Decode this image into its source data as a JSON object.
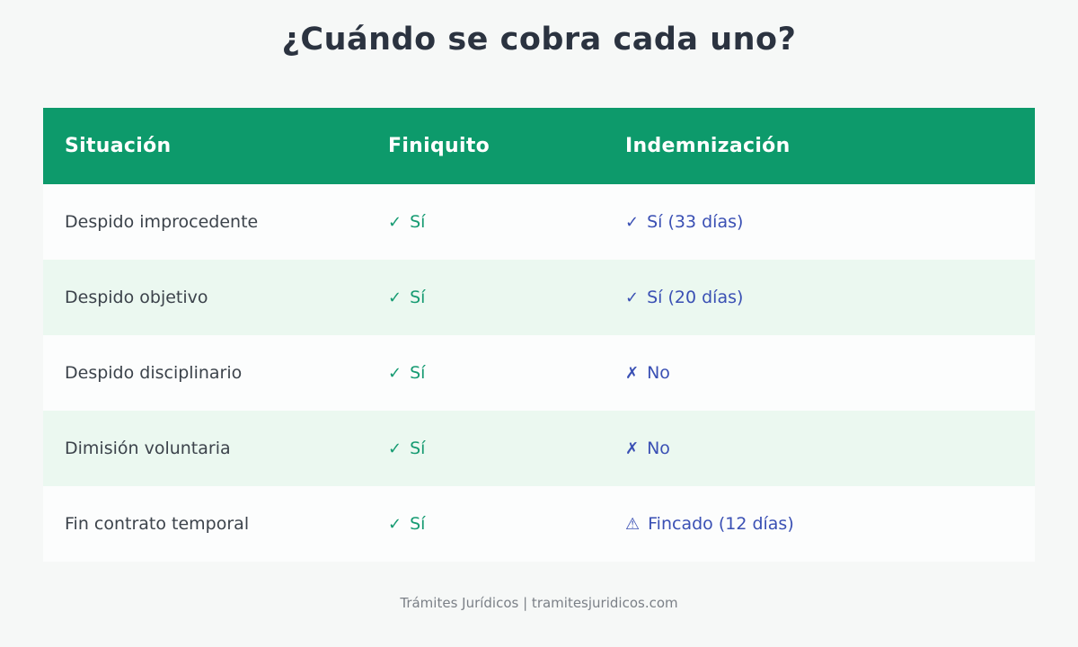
{
  "title": "¿Cuándo se cobra cada uno?",
  "footer": "Trámites Jurídicos | tramitesjuridicos.com",
  "colors": {
    "page_bg": "#f6f8f7",
    "header_bg": "#0d9a6b",
    "header_text": "#ffffff",
    "row_bg": "#fcfdfd",
    "row_alt_bg": "#ebf8f0",
    "title_text": "#2b3340",
    "body_text": "#3c434b",
    "yes_green": "#169b72",
    "info_blue": "#3a50b4",
    "footer_text": "#7b8087"
  },
  "table": {
    "headers": [
      "Situación",
      "Finiquito",
      "Indemnización"
    ],
    "rows": [
      {
        "situacion": "Despido improcedente",
        "finiquito": {
          "glyph": "✓",
          "text": "Sí"
        },
        "indemnizacion": {
          "glyph": "✓",
          "text": "Sí (33 días)"
        }
      },
      {
        "situacion": "Despido objetivo",
        "finiquito": {
          "glyph": "✓",
          "text": "Sí"
        },
        "indemnizacion": {
          "glyph": "✓",
          "text": "Sí (20 días)"
        }
      },
      {
        "situacion": "Despido disciplinario",
        "finiquito": {
          "glyph": "✓",
          "text": "Sí"
        },
        "indemnizacion": {
          "glyph": "✗",
          "text": "No"
        }
      },
      {
        "situacion": "Dimisión voluntaria",
        "finiquito": {
          "glyph": "✓",
          "text": "Sí"
        },
        "indemnizacion": {
          "glyph": "✗",
          "text": "No"
        }
      },
      {
        "situacion": "Fin contrato temporal",
        "finiquito": {
          "glyph": "✓",
          "text": "Sí"
        },
        "indemnizacion": {
          "glyph": "⚠",
          "text": "Fincado (12 días)"
        }
      }
    ]
  },
  "chart_data": {
    "type": "table",
    "title": "¿Cuándo se cobra cada uno?",
    "columns": [
      "Situación",
      "Finiquito",
      "Indemnización"
    ],
    "rows": [
      [
        "Despido improcedente",
        "✓ Sí",
        "✓ Sí (33 días)"
      ],
      [
        "Despido objetivo",
        "✓ Sí",
        "✓ Sí (20 días)"
      ],
      [
        "Despido disciplinario",
        "✓ Sí",
        "✗ No"
      ],
      [
        "Dimisión voluntaria",
        "✓ Sí",
        "✗ No"
      ],
      [
        "Fin contrato temporal",
        "✓ Sí",
        "⚠ Fincado (12 días)"
      ]
    ],
    "footer": "Trámites Jurídicos | tramitesjuridicos.com",
    "grid": false,
    "legend_position": "none"
  }
}
